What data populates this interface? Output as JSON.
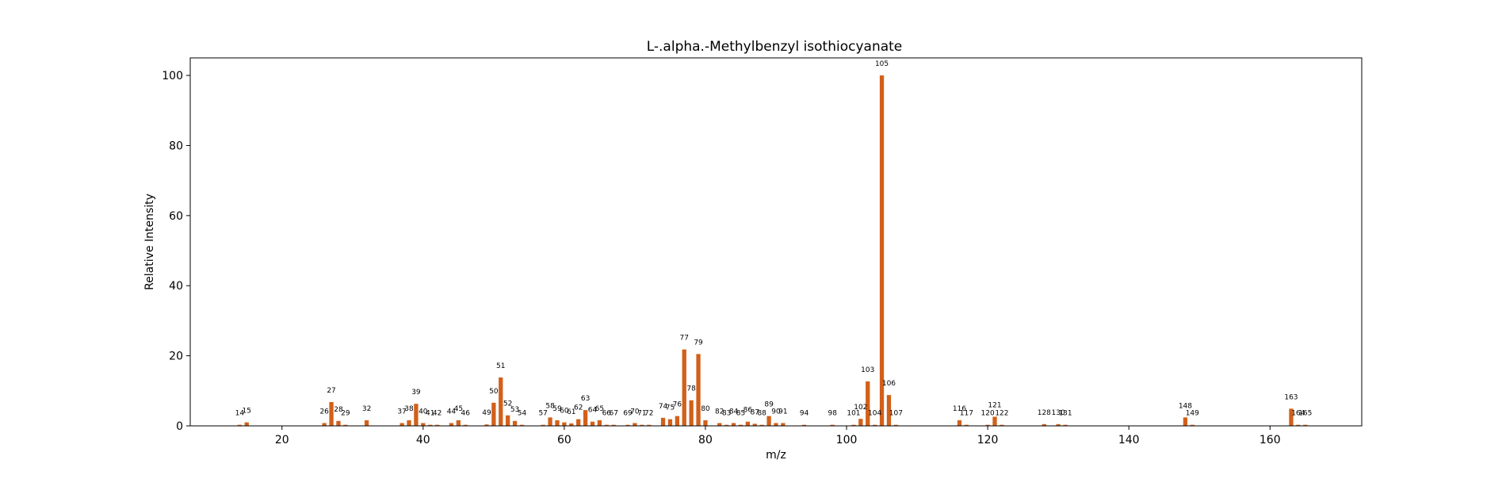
{
  "chart_data": {
    "type": "bar",
    "title": "L-.alpha.-Methylbenzyl isothiocyanate",
    "xlabel": "m/z",
    "ylabel": "Relative Intensity",
    "xlim": [
      7,
      173
    ],
    "ylim": [
      0,
      105
    ],
    "xticks": [
      20,
      40,
      60,
      80,
      100,
      120,
      140,
      160
    ],
    "yticks": [
      0,
      20,
      40,
      60,
      80,
      100
    ],
    "grid": false,
    "bar_color": "#d2601a",
    "x": [
      14,
      15,
      26,
      27,
      28,
      29,
      32,
      37,
      38,
      39,
      40,
      41,
      42,
      44,
      45,
      46,
      49,
      50,
      51,
      52,
      53,
      54,
      57,
      58,
      59,
      60,
      61,
      62,
      63,
      64,
      65,
      66,
      67,
      69,
      70,
      71,
      72,
      74,
      75,
      76,
      77,
      78,
      79,
      80,
      82,
      83,
      84,
      85,
      86,
      87,
      88,
      89,
      90,
      91,
      94,
      98,
      101,
      102,
      103,
      104,
      105,
      106,
      107,
      116,
      117,
      120,
      121,
      122,
      128,
      130,
      131,
      148,
      149,
      163,
      164,
      165
    ],
    "values": [
      0.3,
      1.0,
      0.8,
      6.8,
      1.4,
      0.3,
      1.6,
      0.8,
      1.6,
      6.3,
      0.8,
      0.3,
      0.3,
      0.8,
      1.6,
      0.3,
      0.4,
      6.6,
      13.8,
      3.0,
      1.4,
      0.3,
      0.3,
      2.4,
      1.6,
      1.0,
      0.7,
      1.9,
      4.5,
      1.2,
      1.6,
      0.3,
      0.3,
      0.3,
      0.8,
      0.3,
      0.3,
      2.3,
      1.9,
      2.8,
      21.8,
      7.3,
      20.5,
      1.6,
      0.8,
      0.3,
      0.8,
      0.3,
      1.2,
      0.6,
      0.3,
      2.8,
      0.8,
      0.8,
      0.3,
      0.3,
      0.3,
      2.0,
      12.7,
      0.3,
      100.0,
      8.8,
      0.3,
      1.6,
      0.3,
      0.3,
      2.6,
      0.3,
      0.5,
      0.5,
      0.3,
      2.4,
      0.3,
      4.9,
      0.3,
      0.3
    ],
    "peak_labels": [
      "14",
      "15",
      "26",
      "27",
      "28",
      "29",
      "32",
      "37",
      "38",
      "39",
      "40",
      "41",
      "42",
      "44",
      "45",
      "46",
      "49",
      "50",
      "51",
      "52",
      "53",
      "54",
      "57",
      "58",
      "59",
      "60",
      "61",
      "62",
      "63",
      "64",
      "65",
      "66",
      "67",
      "69",
      "70",
      "71",
      "72",
      "74",
      "75",
      "76",
      "77",
      "78",
      "79",
      "80",
      "82",
      "83",
      "84",
      "85",
      "86",
      "87",
      "88",
      "89",
      "90",
      "91",
      "94",
      "98",
      "101",
      "102",
      "103",
      "104",
      "105",
      "106",
      "107",
      "116",
      "117",
      "120",
      "121",
      "122",
      "128",
      "130",
      "131",
      "148",
      "149",
      "163",
      "164",
      "165"
    ]
  }
}
